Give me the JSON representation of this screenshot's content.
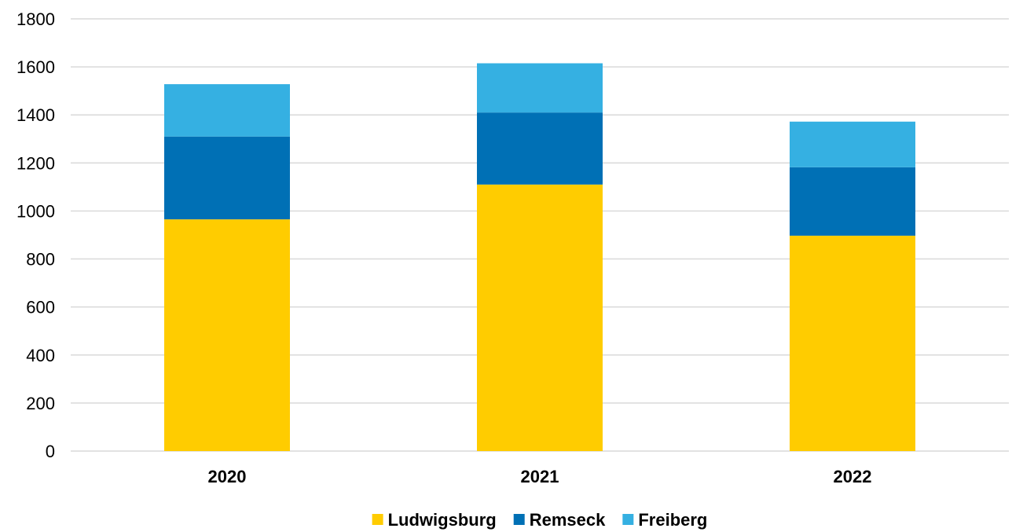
{
  "chart_data": {
    "type": "bar",
    "stacked": true,
    "categories": [
      "2020",
      "2021",
      "2022"
    ],
    "series": [
      {
        "name": "Ludwigsburg",
        "color": "#FFCC00",
        "values": [
          965,
          1110,
          897
        ]
      },
      {
        "name": "Remseck",
        "color": "#0070B5",
        "values": [
          345,
          300,
          285
        ]
      },
      {
        "name": "Freiberg",
        "color": "#35B0E2",
        "values": [
          218,
          205,
          190
        ]
      }
    ],
    "ylim": [
      0,
      1800
    ],
    "yticks": [
      "0",
      "200",
      "400",
      "600",
      "800",
      "1000",
      "1200",
      "1400",
      "1600",
      "1800"
    ],
    "grid": true,
    "legend_position": "bottom"
  }
}
